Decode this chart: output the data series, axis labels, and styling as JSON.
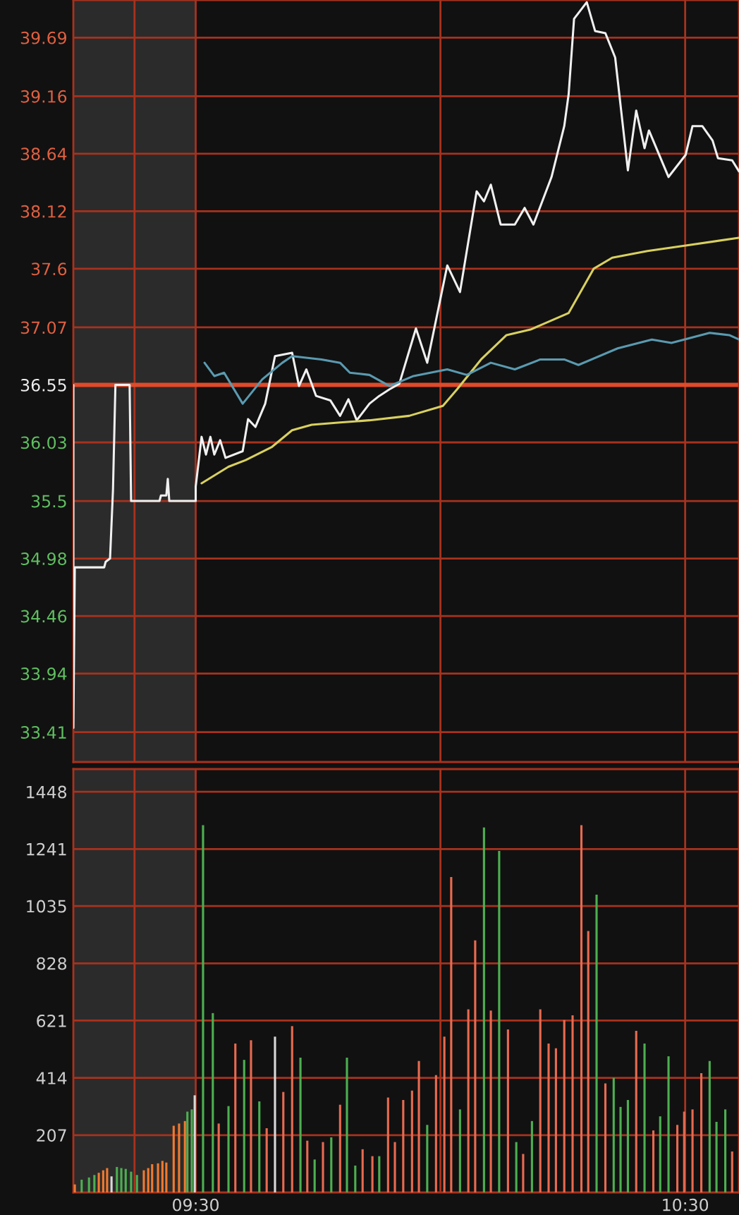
{
  "chart_data": [
    {
      "type": "line",
      "xlim": [
        9.25,
        10.61
      ],
      "xticks": [
        {
          "value": 9.375,
          "label": null
        },
        {
          "value": 9.5,
          "label": null
        },
        {
          "value": 10.0,
          "label": null
        },
        {
          "value": 10.5,
          "label": null
        }
      ],
      "ylim": [
        33.14,
        40.03
      ],
      "yticks": [
        33.41,
        33.94,
        34.46,
        34.98,
        35.5,
        36.03,
        36.55,
        37.07,
        37.6,
        38.12,
        38.64,
        39.16,
        39.69
      ],
      "tick_labels": "y",
      "grid": true,
      "ref_lines": [
        {
          "axis": "y",
          "value": 36.55,
          "color": "#e04a2a"
        }
      ],
      "bands": [
        {
          "axis": "x",
          "from": 9.25,
          "to": 9.5,
          "color": "#2b2b2b"
        }
      ],
      "series": [
        {
          "color": "#f0f0f0",
          "x": [
            9.25,
            9.25,
            9.253,
            9.313,
            9.316,
            9.325,
            9.331,
            9.336,
            9.365,
            9.368,
            9.426,
            9.429,
            9.44,
            9.443,
            9.446,
            9.5,
            9.5,
            9.512,
            9.521,
            9.53,
            9.538,
            9.55,
            9.561,
            9.596,
            9.607,
            9.622,
            9.642,
            9.662,
            9.697,
            9.711,
            9.726,
            9.746,
            9.775,
            9.795,
            9.812,
            9.829,
            9.855,
            9.875,
            9.896,
            9.916,
            9.95,
            9.973,
            10.014,
            10.04,
            10.074,
            10.089,
            10.103,
            10.123,
            10.152,
            10.172,
            10.19,
            10.227,
            10.253,
            10.262,
            10.273,
            10.299,
            10.316,
            10.337,
            10.357,
            10.383,
            10.4,
            10.417,
            10.426,
            10.466,
            10.501,
            10.515,
            10.535,
            10.556,
            10.567,
            10.596,
            10.61
          ],
          "values": [
            36.55,
            33.45,
            34.9,
            34.9,
            34.95,
            34.98,
            35.6,
            36.55,
            36.55,
            35.5,
            35.5,
            35.55,
            35.55,
            35.7,
            35.5,
            35.5,
            35.63,
            36.08,
            35.92,
            36.08,
            35.92,
            36.05,
            35.89,
            35.95,
            36.24,
            36.17,
            36.38,
            36.81,
            36.84,
            36.54,
            36.69,
            36.45,
            36.41,
            36.27,
            36.42,
            36.23,
            36.38,
            36.45,
            36.51,
            36.56,
            37.06,
            36.75,
            37.63,
            37.39,
            38.3,
            38.21,
            38.36,
            38.0,
            38.0,
            38.15,
            38.0,
            38.43,
            38.89,
            39.18,
            39.86,
            40.01,
            39.75,
            39.73,
            39.51,
            38.49,
            39.03,
            38.69,
            38.85,
            38.43,
            38.63,
            38.89,
            38.89,
            38.76,
            38.6,
            38.58,
            38.48
          ]
        },
        {
          "color": "#d8d060",
          "x": [
            9.512,
            9.567,
            9.602,
            9.656,
            9.697,
            9.737,
            9.795,
            9.855,
            9.936,
            10.005,
            10.034,
            10.083,
            10.135,
            10.184,
            10.262,
            10.313,
            10.351,
            10.423,
            10.501,
            10.61
          ],
          "values": [
            35.66,
            35.81,
            35.87,
            35.99,
            36.14,
            36.19,
            36.21,
            36.23,
            36.27,
            36.36,
            36.51,
            36.78,
            37.0,
            37.05,
            37.2,
            37.6,
            37.7,
            37.76,
            37.81,
            37.88
          ]
        },
        {
          "color": "#5a9ab0",
          "x": [
            9.518,
            9.538,
            9.558,
            9.596,
            9.636,
            9.677,
            9.697,
            9.757,
            9.795,
            9.815,
            9.855,
            9.896,
            9.945,
            10.014,
            10.054,
            10.103,
            10.152,
            10.204,
            10.253,
            10.282,
            10.362,
            10.432,
            10.472,
            10.55,
            10.59,
            10.61
          ],
          "values": [
            36.75,
            36.63,
            36.66,
            36.38,
            36.6,
            36.75,
            36.81,
            36.78,
            36.75,
            36.66,
            36.64,
            36.54,
            36.63,
            36.69,
            36.64,
            36.75,
            36.69,
            36.78,
            36.78,
            36.73,
            36.88,
            36.96,
            36.93,
            37.02,
            37.0,
            36.96
          ]
        }
      ]
    },
    {
      "type": "bar",
      "xlim": [
        9.25,
        10.61
      ],
      "xticks": [
        {
          "value": 9.375,
          "label": null
        },
        {
          "value": 9.5,
          "label": "09:30"
        },
        {
          "value": 10.0,
          "label": null
        },
        {
          "value": 10.5,
          "label": "10:30"
        }
      ],
      "ylim": [
        0,
        1530
      ],
      "yticks": [
        207,
        414,
        621,
        828,
        1035,
        1241,
        1448
      ],
      "grid": true,
      "bands": [
        {
          "axis": "x",
          "from": 9.25,
          "to": 9.5,
          "color": "#2b2b2b"
        }
      ],
      "series": [
        {
          "x": [
            9.253,
            9.267,
            9.282,
            9.293,
            9.302,
            9.311,
            9.319,
            9.328,
            9.339,
            9.348,
            9.357,
            9.368,
            9.38,
            9.394,
            9.403,
            9.411,
            9.423,
            9.432,
            9.44,
            9.455,
            9.466,
            9.478,
            9.483,
            9.492,
            9.498
          ],
          "values": [
            29,
            46,
            54,
            63,
            71,
            80,
            88,
            58,
            92,
            88,
            85,
            75,
            63,
            80,
            88,
            102,
            105,
            114,
            108,
            241,
            249,
            258,
            292,
            300,
            351
          ],
          "colors": [
            "#f07a30",
            "#4caf50",
            "#4caf50",
            "#4caf50",
            "#f07a30",
            "#f07a30",
            "#f07a30",
            "#d8d8d8",
            "#4caf50",
            "#4caf50",
            "#4caf50",
            "#4caf50",
            "#4caf50",
            "#f07a30",
            "#f07a30",
            "#f07a30",
            "#f07a30",
            "#f07a30",
            "#f07a30",
            "#f07a30",
            "#f07a30",
            "#f07a30",
            "#4caf50",
            "#4caf50",
            "#d8d8d8"
          ]
        },
        {
          "x": [
            9.515,
            9.535,
            9.547,
            9.567,
            9.581,
            9.599,
            9.613,
            9.63,
            9.645,
            9.662,
            9.679,
            9.697,
            9.714,
            9.728,
            9.743,
            9.76,
            9.777,
            9.795,
            9.809,
            9.826,
            9.841,
            9.861,
            9.875,
            9.893,
            9.907,
            9.924,
            9.942,
            9.956,
            9.973,
            9.991,
            10.008,
            10.022,
            10.04,
            10.057,
            10.071,
            10.089,
            10.103,
            10.12,
            10.138,
            10.155,
            10.169,
            10.187,
            10.204,
            10.221,
            10.236,
            10.253,
            10.27,
            10.288,
            10.302,
            10.319,
            10.337,
            10.354,
            10.368,
            10.383,
            10.4,
            10.417,
            10.435,
            10.449,
            10.466,
            10.484,
            10.498,
            10.515,
            10.533,
            10.55,
            10.564,
            10.582,
            10.596
          ],
          "values": [
            1327,
            648,
            249,
            312,
            538,
            479,
            550,
            329,
            232,
            563,
            363,
            601,
            487,
            187,
            119,
            182,
            199,
            317,
            487,
            97,
            156,
            131,
            131,
            343,
            182,
            334,
            368,
            475,
            244,
            424,
            563,
            1140,
            300,
            662,
            911,
            1319,
            657,
            1234,
            589,
            182,
            139,
            258,
            662,
            538,
            521,
            623,
            640,
            1327,
            945,
            1076,
            394,
            414,
            309,
            334,
            584,
            538,
            224,
            275,
            492,
            244,
            292,
            300,
            431,
            475,
            255,
            300,
            148
          ],
          "colors": [
            "#4caf50",
            "#4caf50",
            "#e86a50",
            "#4caf50",
            "#e86a50",
            "#4caf50",
            "#e86a50",
            "#4caf50",
            "#e86a50",
            "#d8d8d8",
            "#e86a50",
            "#e86a50",
            "#4caf50",
            "#e86a50",
            "#4caf50",
            "#e86a50",
            "#4caf50",
            "#e86a50",
            "#4caf50",
            "#4caf50",
            "#e86a50",
            "#e86a50",
            "#4caf50",
            "#e86a50",
            "#e86a50",
            "#e86a50",
            "#e86a50",
            "#e86a50",
            "#4caf50",
            "#e86a50",
            "#e86a50",
            "#e86a50",
            "#4caf50",
            "#e86a50",
            "#e86a50",
            "#4caf50",
            "#e86a50",
            "#4caf50",
            "#e86a50",
            "#4caf50",
            "#e86a50",
            "#4caf50",
            "#e86a50",
            "#e86a50",
            "#e86a50",
            "#e86a50",
            "#e86a50",
            "#e86a50",
            "#e86a50",
            "#4caf50",
            "#e86a50",
            "#4caf50",
            "#4caf50",
            "#4caf50",
            "#e86a50",
            "#4caf50",
            "#e86a50",
            "#4caf50",
            "#4caf50",
            "#e86a50",
            "#e86a50",
            "#e86a50",
            "#e86a50",
            "#4caf50",
            "#4caf50",
            "#4caf50",
            "#e86a50"
          ]
        }
      ]
    }
  ]
}
